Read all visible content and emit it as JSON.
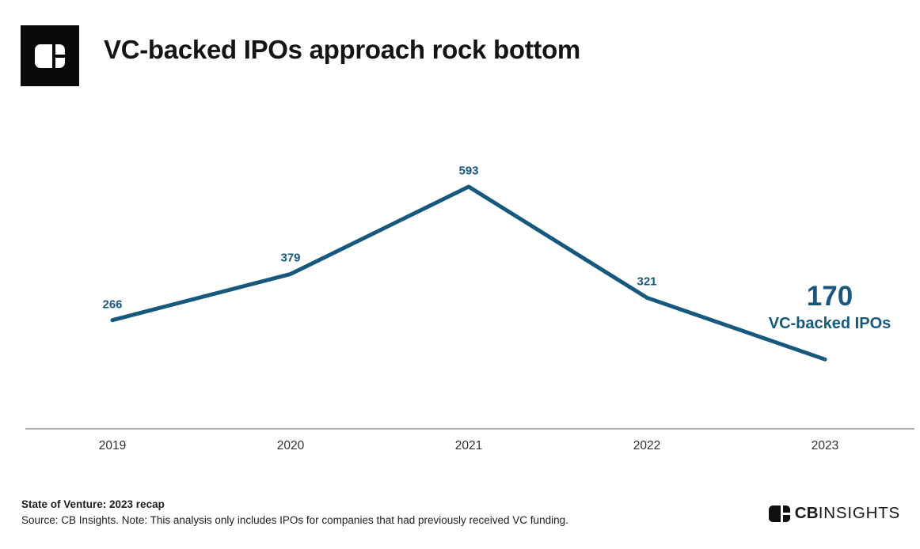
{
  "header": {
    "title": "VC-backed IPOs approach rock bottom"
  },
  "chart_data": {
    "type": "line",
    "title": "VC-backed IPOs approach rock bottom",
    "categories": [
      "2019",
      "2020",
      "2021",
      "2022",
      "2023"
    ],
    "values": [
      266,
      379,
      593,
      321,
      170
    ],
    "series_name": "VC-backed IPOs",
    "xlabel": "",
    "ylabel": "",
    "ylim": [
      0,
      650
    ],
    "grid": false,
    "legend": "none",
    "line_color": "#16587E",
    "axis_color": "#A8AEB0",
    "data_label_color": "#16587E",
    "final_annotation": {
      "value": "170",
      "label": "VC-backed IPOs"
    }
  },
  "footer": {
    "report": "State of Venture: 2023 recap",
    "source_note": "Source: CB Insights. Note: This analysis only includes IPOs for companies that had previously received VC funding.",
    "brand": {
      "prefix": "CB",
      "suffix": "INSIGHTS"
    }
  }
}
